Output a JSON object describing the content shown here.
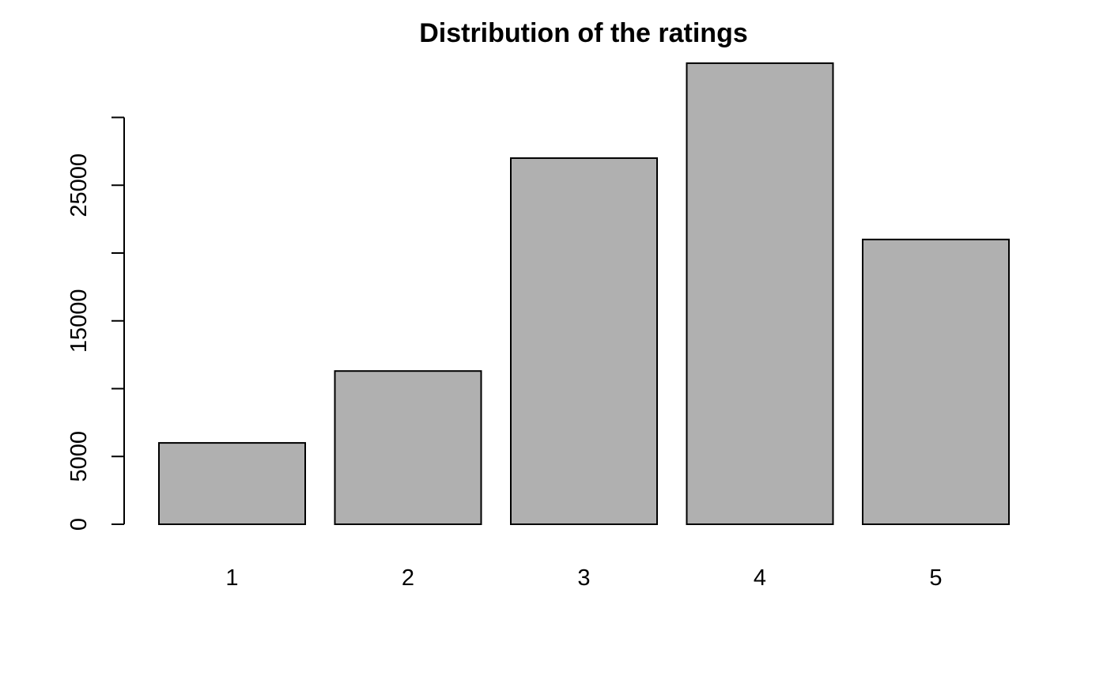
{
  "chart_data": {
    "type": "bar",
    "title": "Distribution of the ratings",
    "xlabel": "",
    "ylabel": "",
    "categories": [
      "1",
      "2",
      "3",
      "4",
      "5"
    ],
    "values": [
      6000,
      11300,
      27000,
      34000,
      21000
    ],
    "ylim": [
      0,
      34000
    ],
    "y_ticks": [
      0,
      5000,
      10000,
      15000,
      20000,
      25000,
      30000
    ],
    "y_tick_labels": [
      "0",
      "5000",
      "",
      "15000",
      "",
      "25000",
      ""
    ],
    "bar_color": "#b0b0b0",
    "border_color": "#000000",
    "grid": false,
    "legend": "none"
  }
}
